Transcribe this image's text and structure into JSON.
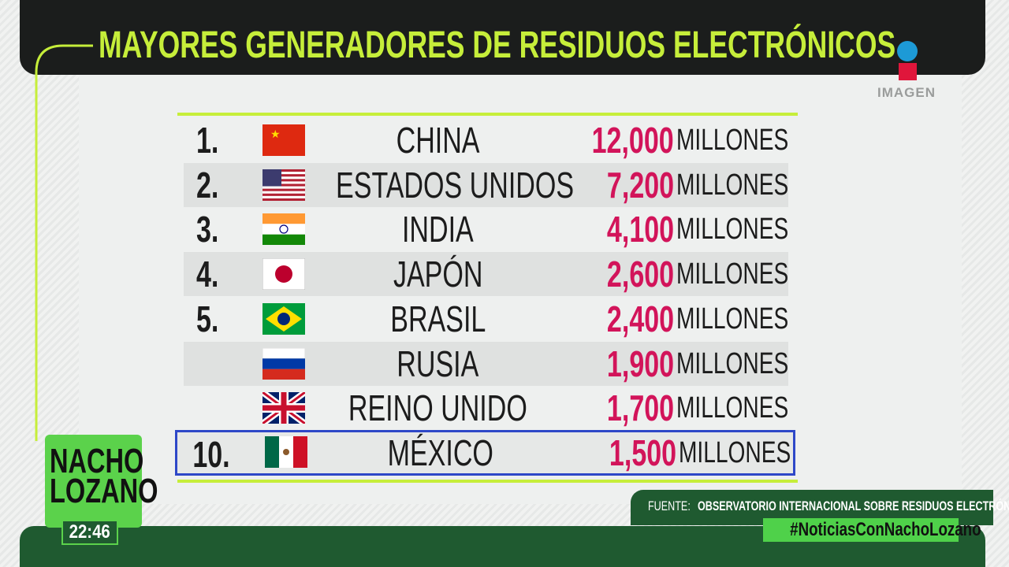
{
  "header": {
    "title": "MAYORES GENERADORES DE RESIDUOS ELECTRÓNICOS",
    "logo": "IMAGEN"
  },
  "table": {
    "rows": [
      {
        "rank": "1.",
        "country": "CHINA",
        "amount": "12,000",
        "unit": "MILLONES"
      },
      {
        "rank": "2.",
        "country": "ESTADOS UNIDOS",
        "amount": "7,200",
        "unit": "MILLONES"
      },
      {
        "rank": "3.",
        "country": "INDIA",
        "amount": "4,100",
        "unit": "MILLONES"
      },
      {
        "rank": "4.",
        "country": "JAPÓN",
        "amount": "2,600",
        "unit": "MILLONES"
      },
      {
        "rank": "5.",
        "country": "BRASIL",
        "amount": "2,400",
        "unit": "MILLONES"
      },
      {
        "rank": null,
        "country": "RUSIA",
        "amount": "1,900",
        "unit": "MILLONES"
      },
      {
        "rank": null,
        "country": "REINO UNIDO",
        "amount": "1,700",
        "unit": "MILLONES"
      },
      {
        "rank": "10.",
        "country": "MÉXICO",
        "amount": "1,500",
        "unit": "MILLONES"
      }
    ]
  },
  "footer": {
    "source_label": "FUENTE:",
    "source": "OBSERVATORIO INTERNACIONAL SOBRE RESIDUOS ELECTRÓNICOS",
    "hashtag": "#NoticiasConNachoLozano",
    "host_first": "NACHO",
    "host_last": "LOZANO",
    "time": "22:46"
  }
}
